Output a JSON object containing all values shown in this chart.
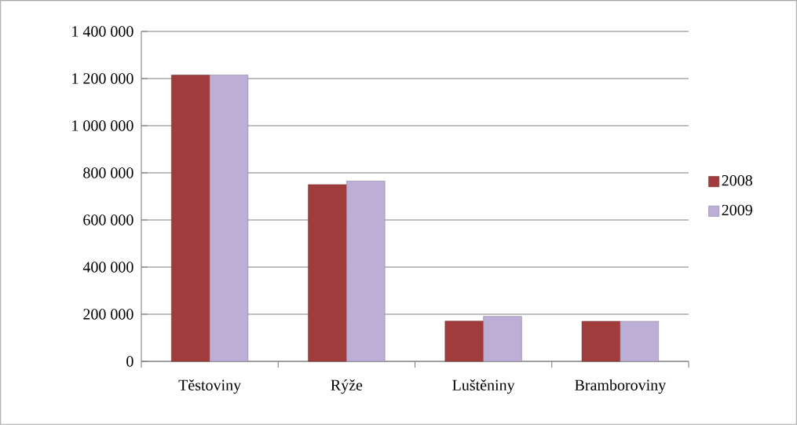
{
  "chart_data": {
    "type": "bar",
    "categories": [
      "Těstoviny",
      "Rýže",
      "Luštěniny",
      "Bramboroviny"
    ],
    "series": [
      {
        "name": "2008",
        "color": "#a03c3c",
        "values": [
          1215000,
          750000,
          171000,
          170000
        ]
      },
      {
        "name": "2009",
        "color": "#bcaed4",
        "values": [
          1215000,
          765000,
          191000,
          170000
        ]
      }
    ],
    "ylim": [
      0,
      1400000
    ],
    "yticks": [
      {
        "value": 0,
        "label": "0"
      },
      {
        "value": 200000,
        "label": "200 000"
      },
      {
        "value": 400000,
        "label": "400 000"
      },
      {
        "value": 600000,
        "label": "600 000"
      },
      {
        "value": 800000,
        "label": "800 000"
      },
      {
        "value": 1000000,
        "label": "1 000 000"
      },
      {
        "value": 1200000,
        "label": "1 200 000"
      },
      {
        "value": 1400000,
        "label": "1 400 000"
      }
    ],
    "grid": "y",
    "legend": "right"
  }
}
